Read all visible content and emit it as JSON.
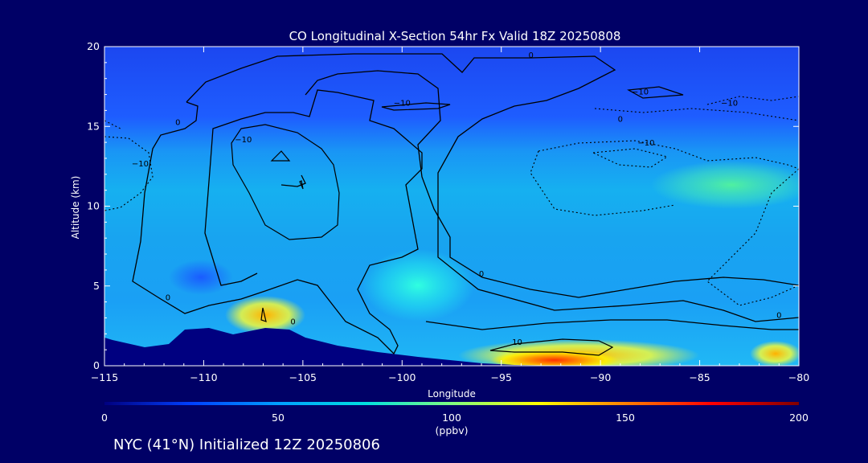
{
  "chart_data": {
    "type": "heatmap",
    "title": "CO Longitudinal X-Section 54hr  Fx Valid 18Z 20250808",
    "xlabel": "Longitude",
    "ylabel": "Altitude (km)",
    "xlim": [
      -115,
      -80
    ],
    "ylim": [
      0,
      20
    ],
    "x_ticks": [
      -115,
      -110,
      -105,
      -100,
      -95,
      -90,
      -85,
      -80
    ],
    "x_tick_labels": [
      "−115",
      "−110",
      "−105",
      "−100",
      "−95",
      "−90",
      "−85",
      "−80"
    ],
    "y_ticks": [
      0,
      5,
      10,
      15,
      20
    ],
    "y_tick_labels": [
      "0",
      "5",
      "10",
      "15",
      "20"
    ],
    "colorbar": {
      "min": 0,
      "max": 200,
      "ticks": [
        0,
        50,
        100,
        150,
        200
      ],
      "tick_labels": [
        "0",
        "50",
        "100",
        "150",
        "200"
      ],
      "unit_label": "(ppbv)",
      "stops": [
        "#000080",
        "#0040ff",
        "#00a0ff",
        "#00e0e0",
        "#80ff80",
        "#ffff00",
        "#ff8000",
        "#ff0000",
        "#800000"
      ]
    },
    "contour_labels": [
      {
        "text": "0",
        "lon": -111.3,
        "alt": 15.1
      },
      {
        "text": "0",
        "lon": -93.5,
        "alt": 19.3
      },
      {
        "text": "−10",
        "lon": -108.0,
        "alt": 14.0
      },
      {
        "text": "−10",
        "lon": -113.2,
        "alt": 12.5
      },
      {
        "text": "−10",
        "lon": -100.0,
        "alt": 16.3
      },
      {
        "text": "−10",
        "lon": -88.0,
        "alt": 17.0
      },
      {
        "text": "−10",
        "lon": -83.5,
        "alt": 16.3
      },
      {
        "text": "0",
        "lon": -89.0,
        "alt": 15.3
      },
      {
        "text": "−10",
        "lon": -87.7,
        "alt": 13.8
      },
      {
        "text": "0",
        "lon": -96.0,
        "alt": 5.6
      },
      {
        "text": "0",
        "lon": -111.8,
        "alt": 4.1
      },
      {
        "text": "0",
        "lon": -105.5,
        "alt": 2.6
      },
      {
        "text": "0",
        "lon": -81.0,
        "alt": 3.0
      },
      {
        "text": "10",
        "lon": -94.2,
        "alt": 1.3
      }
    ]
  },
  "footer": "NYC (41°N) Initialized 12Z 20250806"
}
